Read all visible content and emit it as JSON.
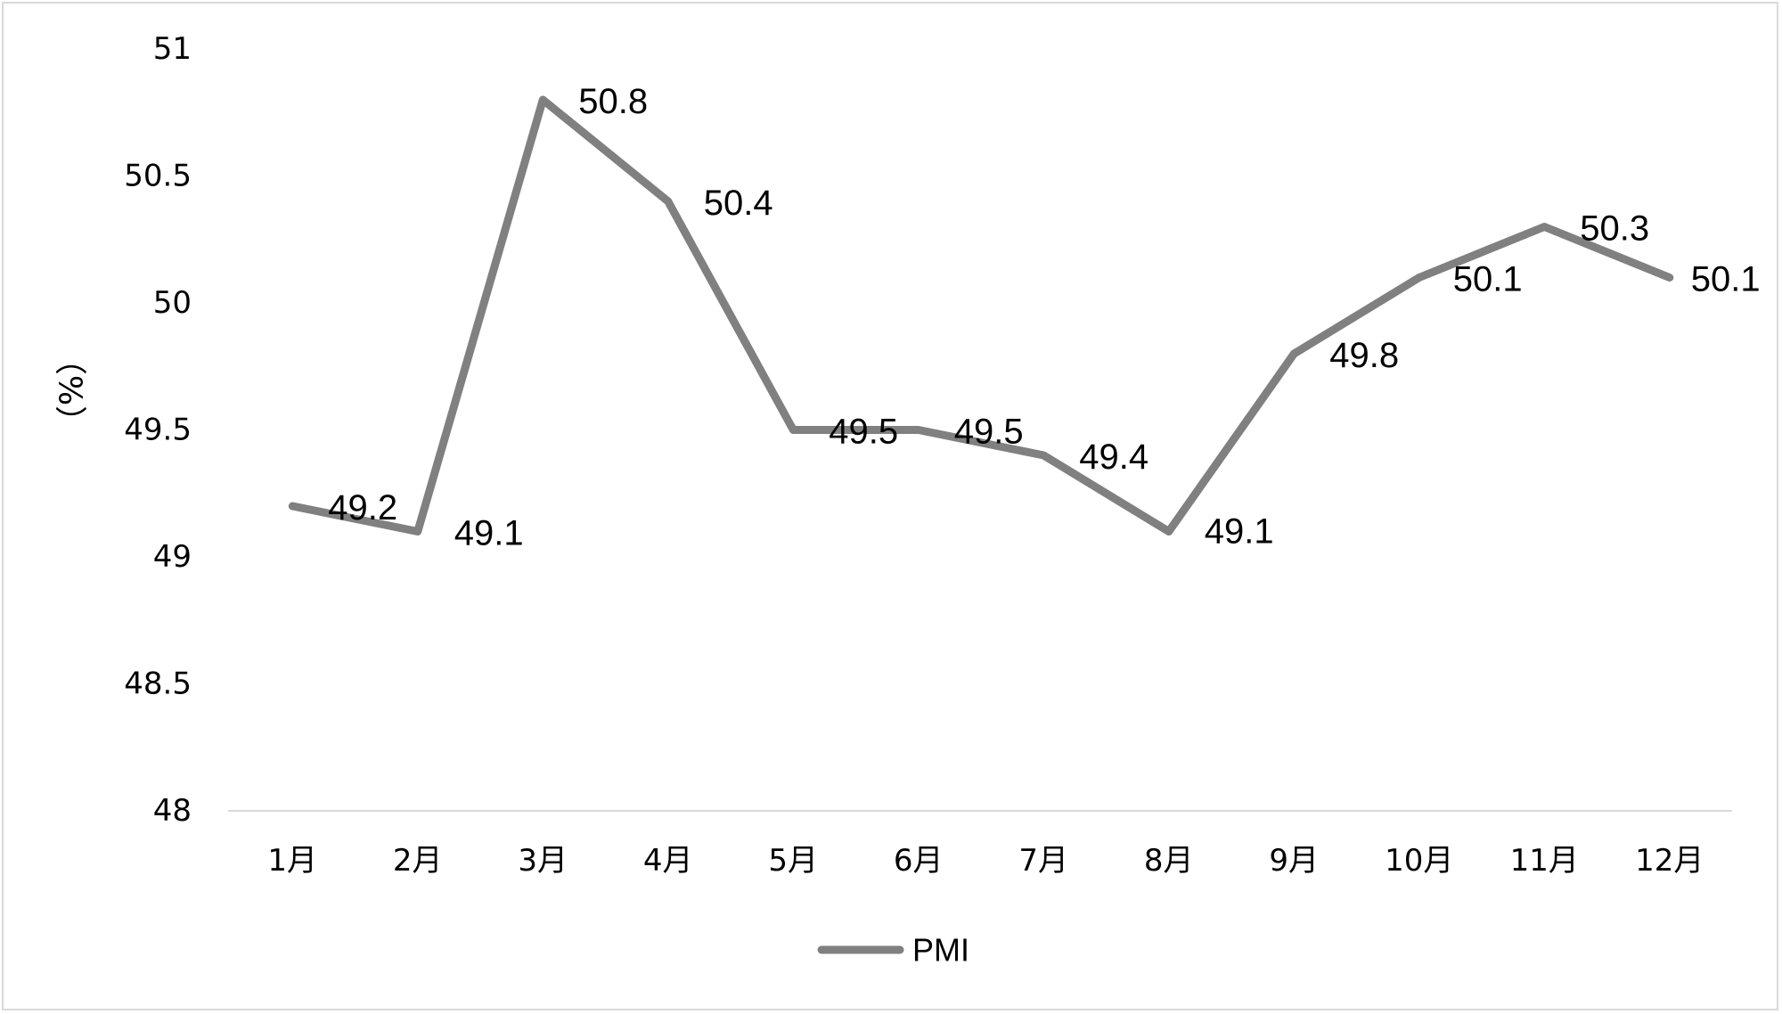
{
  "chart_data": {
    "type": "line",
    "title": "",
    "xlabel": "",
    "ylabel": "（%）",
    "categories": [
      "1月",
      "2月",
      "3月",
      "4月",
      "5月",
      "6月",
      "7月",
      "8月",
      "9月",
      "10月",
      "11月",
      "12月"
    ],
    "series": [
      {
        "name": "PMI",
        "values": [
          49.2,
          49.1,
          50.8,
          50.4,
          49.5,
          49.5,
          49.4,
          49.1,
          49.8,
          50.1,
          50.3,
          50.1
        ],
        "data_labels": [
          "49.2",
          "49.1",
          "50.8",
          "50.4",
          "49.5",
          "49.5",
          "49.4",
          "49.1",
          "49.8",
          "50.1",
          "50.3",
          "50.1"
        ],
        "color": "#808080"
      }
    ],
    "ylim": [
      48,
      51
    ],
    "yticks": [
      "48",
      "48.5",
      "49",
      "49.5",
      "50",
      "50.5",
      "51"
    ],
    "grid": false,
    "legend": "bottom-center",
    "colors": {
      "series": "#808080",
      "axis": "#d9d9d9",
      "border": "#d9d9d9"
    }
  }
}
